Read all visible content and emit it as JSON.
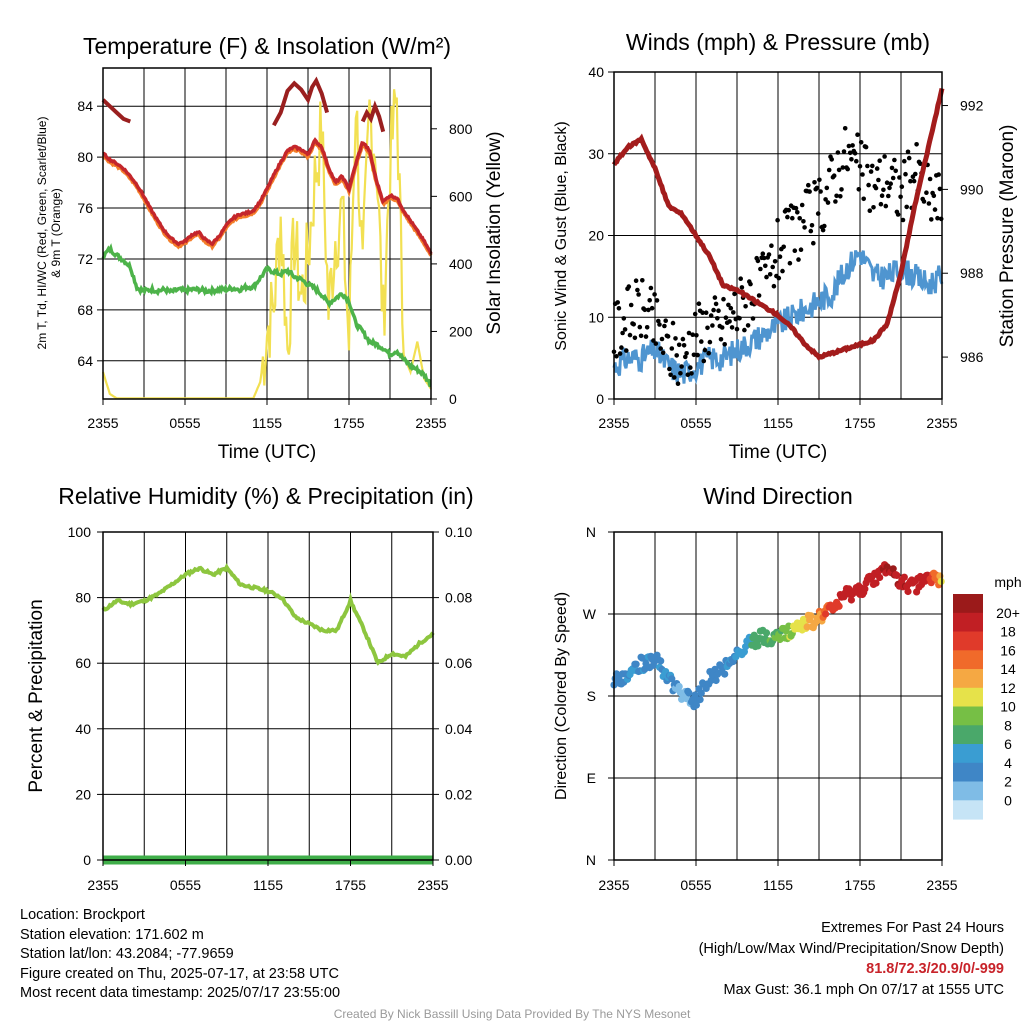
{
  "colors": {
    "temp": "#c4262b",
    "heat": "#f47e2a",
    "dew": "#4db34a",
    "solar": "#f2e052",
    "temp_hi": "#9a1f1f",
    "sonic": "#4f95d0",
    "gust": "#000000",
    "pressure": "#a31c1c",
    "rh": "#8dc63f",
    "precip": "#3fae49"
  },
  "panels": {
    "temp": {
      "title": "Temperature (F) & Insolation (W/m²)",
      "ylabel_left_line1": "2m T, Td, HI/WC (Red, Green, Scarlet/Blue)",
      "ylabel_left_line2": "& 9m T (Orange)",
      "ylabel_right": "Solar Insolation (Yellow)",
      "xlabel": "Time (UTC)",
      "left_ticks": [
        "64",
        "68",
        "72",
        "76",
        "80",
        "84"
      ],
      "right_ticks": [
        "0",
        "200",
        "400",
        "600",
        "800"
      ]
    },
    "wind": {
      "title": "Winds (mph) & Pressure (mb)",
      "ylabel_left": "Sonic Wind & Gust (Blue, Black)",
      "ylabel_right": "Station Pressure (Maroon)",
      "xlabel": "Time (UTC)",
      "left_ticks": [
        "0",
        "10",
        "20",
        "30",
        "40"
      ],
      "right_ticks": [
        "986",
        "988",
        "990",
        "992"
      ]
    },
    "rh": {
      "title": "Relative Humidity (%) & Precipitation (in)",
      "ylabel_left": "Percent & Precipitation",
      "left_ticks": [
        "0",
        "20",
        "40",
        "60",
        "80",
        "100"
      ],
      "right_ticks": [
        "0.00",
        "0.02",
        "0.04",
        "0.06",
        "0.08",
        "0.10"
      ]
    },
    "dir": {
      "title": "Wind Direction",
      "ylabel_left": "Direction (Colored By Speed)",
      "dir_ticks": [
        "N",
        "E",
        "S",
        "W",
        "N"
      ],
      "colorbar_title": "mph",
      "colorbar_labels": [
        "0",
        "2",
        "4",
        "6",
        "8",
        "10",
        "12",
        "14",
        "16",
        "18",
        "20+"
      ],
      "colorbar_colors": [
        "#c6e4f6",
        "#7fbce6",
        "#3f86c6",
        "#3a9dd2",
        "#4aa86a",
        "#76bf45",
        "#e6e24a",
        "#f5a843",
        "#f06a2a",
        "#e03a2a",
        "#c11f24",
        "#9b1a1a"
      ]
    }
  },
  "time_ticks": [
    "2355",
    "0555",
    "1155",
    "1755",
    "2355"
  ],
  "chart_data": [
    {
      "type": "line",
      "title": "Temperature (F) & Insolation (W/m²)",
      "xlabel": "Time (UTC)",
      "ylabel": "2m T, Td, HI/WC (Red, Green, Scarlet/Blue) & 9m T (Orange)",
      "y2label": "Solar Insolation (Yellow)",
      "x_hours": [
        0,
        0.5,
        1,
        1.5,
        2,
        2.5,
        3,
        3.5,
        4,
        4.5,
        5,
        5.5,
        6,
        6.5,
        7,
        7.5,
        8,
        8.5,
        9,
        9.5,
        10,
        10.5,
        11,
        11.5,
        12,
        12.5,
        13,
        13.5,
        14,
        14.5,
        15,
        15.5,
        16,
        16.5,
        17,
        17.5,
        18,
        18.5,
        19,
        19.5,
        20,
        20.5,
        21,
        21.5,
        22,
        22.5,
        23,
        23.5,
        24
      ],
      "ylim": [
        61,
        87
      ],
      "y2lim": [
        0,
        980
      ],
      "series": [
        {
          "name": "2m T",
          "axis": "left",
          "values": [
            80.3,
            79.8,
            79.5,
            79.1,
            78.5,
            77.8,
            76.9,
            75.9,
            75.0,
            74.2,
            73.6,
            73.2,
            73.4,
            73.9,
            74.1,
            73.5,
            73.2,
            73.8,
            74.6,
            75.2,
            75.5,
            75.6,
            75.8,
            76.5,
            77.5,
            78.6,
            79.6,
            80.5,
            80.8,
            80.6,
            80.2,
            81.3,
            80.8,
            79.2,
            78.0,
            78.5,
            77.5,
            79.5,
            81.2,
            80.5,
            78.2,
            76.5,
            77.0,
            76.8,
            75.8,
            75.0,
            74.2,
            73.4,
            72.4
          ]
        },
        {
          "name": "9m T",
          "axis": "left",
          "values": [
            80.1,
            79.6,
            79.3,
            78.9,
            78.3,
            77.6,
            76.7,
            75.7,
            74.8,
            74.0,
            73.4,
            73.0,
            73.2,
            73.7,
            73.9,
            73.3,
            73.0,
            73.6,
            74.4,
            75.0,
            75.3,
            75.4,
            75.6,
            76.3,
            77.3,
            78.4,
            79.4,
            80.3,
            80.6,
            80.4,
            80.0,
            81.1,
            80.6,
            79.0,
            77.8,
            78.3,
            77.3,
            79.3,
            81.0,
            80.3,
            78.0,
            76.3,
            76.8,
            76.6,
            75.6,
            74.8,
            74.0,
            73.2,
            72.2
          ]
        },
        {
          "name": "Td",
          "axis": "left",
          "values": [
            72.2,
            72.8,
            72.3,
            71.9,
            71.4,
            69.7,
            69.5,
            69.6,
            69.5,
            69.6,
            69.4,
            69.6,
            69.5,
            69.6,
            69.6,
            69.5,
            69.5,
            69.6,
            69.6,
            69.7,
            69.6,
            69.8,
            69.8,
            70.5,
            71.2,
            71.0,
            70.8,
            71.1,
            70.6,
            70.4,
            70.0,
            69.7,
            69.2,
            68.5,
            68.9,
            69.3,
            68.7,
            66.9,
            66.3,
            65.5,
            65.3,
            65.0,
            64.5,
            64.8,
            64.1,
            63.6,
            63.3,
            62.9,
            62.1
          ]
        },
        {
          "name": "Solar",
          "axis": "right",
          "values": [
            80,
            15,
            2,
            2,
            2,
            2,
            2,
            2,
            2,
            2,
            2,
            2,
            2,
            2,
            2,
            2,
            2,
            2,
            2,
            2,
            2,
            2,
            2,
            50,
            200,
            280,
            540,
            150,
            480,
            300,
            420,
            650,
            800,
            260,
            480,
            560,
            160,
            900,
            350,
            850,
            720,
            220,
            700,
            900,
            130,
            80,
            170,
            60,
            30
          ]
        }
      ]
    },
    {
      "type": "line",
      "title": "Winds (mph) & Pressure (mb)",
      "xlabel": "Time (UTC)",
      "ylabel": "Sonic Wind & Gust (Blue, Black)",
      "y2label": "Station Pressure (Maroon)",
      "x_hours": [
        0,
        1,
        2,
        3,
        4,
        5,
        6,
        7,
        8,
        9,
        10,
        11,
        12,
        13,
        14,
        15,
        16,
        17,
        18,
        19,
        20,
        21,
        22,
        23,
        24
      ],
      "ylim": [
        0,
        40
      ],
      "y2lim": [
        985.0,
        992.8
      ],
      "series": [
        {
          "name": "Sonic Wind",
          "axis": "left",
          "values": [
            4,
            5,
            5,
            6,
            4,
            3,
            4,
            5,
            5,
            6,
            7,
            8,
            9,
            10,
            11,
            12,
            13,
            16,
            18,
            15,
            15,
            16,
            15,
            14,
            15
          ]
        },
        {
          "name": "Gust",
          "axis": "left",
          "values": [
            8,
            10,
            11,
            9,
            6,
            5,
            8,
            9,
            9,
            11,
            13,
            14,
            18,
            20,
            22,
            23,
            27,
            30,
            28,
            26,
            27,
            25,
            28,
            25,
            24
          ]
        },
        {
          "name": "Pressure",
          "axis": "right",
          "values": [
            990.6,
            991.0,
            991.2,
            990.5,
            989.6,
            989.4,
            988.9,
            988.4,
            987.7,
            987.6,
            987.4,
            987.2,
            987.0,
            986.7,
            986.3,
            986.0,
            986.1,
            986.2,
            986.3,
            986.4,
            986.8,
            988.0,
            989.6,
            991.0,
            992.4
          ]
        }
      ]
    },
    {
      "type": "line",
      "title": "Relative Humidity (%) & Precipitation (in)",
      "ylabel": "Percent & Precipitation",
      "x_hours": [
        0,
        1,
        2,
        3,
        4,
        5,
        6,
        7,
        8,
        9,
        10,
        11,
        12,
        13,
        14,
        15,
        16,
        17,
        18,
        19,
        20,
        21,
        22,
        23,
        24
      ],
      "ylim": [
        0,
        100
      ],
      "y2lim": [
        0,
        0.1
      ],
      "series": [
        {
          "name": "RH",
          "axis": "left",
          "values": [
            76,
            79,
            78,
            79,
            81,
            84,
            87,
            89,
            87,
            89,
            84,
            83,
            82,
            80,
            74,
            72,
            70,
            70,
            79,
            70,
            60,
            63,
            62,
            66,
            69
          ]
        },
        {
          "name": "Precipitation",
          "axis": "right",
          "values": [
            0,
            0,
            0,
            0,
            0,
            0,
            0,
            0,
            0,
            0,
            0,
            0,
            0,
            0,
            0,
            0,
            0,
            0,
            0,
            0,
            0,
            0,
            0,
            0,
            0
          ]
        }
      ]
    },
    {
      "type": "scatter",
      "title": "Wind Direction",
      "ylabel": "Direction (Colored By Speed)",
      "ylim": [
        0,
        360
      ],
      "x_hours": [
        0,
        1,
        2,
        3,
        4,
        5,
        6,
        7,
        8,
        9,
        10,
        11,
        12,
        13,
        14,
        15,
        16,
        17,
        18,
        19,
        20,
        21,
        22,
        23,
        24
      ],
      "series": [
        {
          "name": "Direction",
          "values": [
            195,
            205,
            215,
            220,
            200,
            180,
            175,
            200,
            210,
            225,
            240,
            245,
            245,
            250,
            260,
            265,
            275,
            290,
            295,
            310,
            320,
            305,
            300,
            310,
            305
          ]
        },
        {
          "name": "Speed",
          "values": [
            3,
            4,
            4,
            3,
            4,
            1,
            3,
            3,
            3,
            4,
            6,
            7,
            8,
            10,
            12,
            14,
            17,
            19,
            19,
            19,
            20,
            20,
            19,
            19,
            12
          ]
        }
      ]
    }
  ],
  "footer": {
    "location": "Location: Brockport",
    "elevation": "Station elevation: 171.602 m",
    "latlon": "Station lat/lon: 43.2084; -77.9659",
    "created": "Figure created on Thu, 2025-07-17, at 23:58 UTC",
    "recent": "Most recent data timestamp: 2025/07/17 23:55:00",
    "extremes_title": "Extremes For Past 24 Hours",
    "extremes_desc": "(High/Low/Max Wind/Precipitation/Snow Depth)",
    "extremes_vals": "81.8/72.3/20.9/0/-999",
    "max_gust": "Max Gust: 36.1 mph On 07/17 at 1555 UTC",
    "credit": "Created By Nick Bassill Using Data Provided By The NYS Mesonet"
  }
}
